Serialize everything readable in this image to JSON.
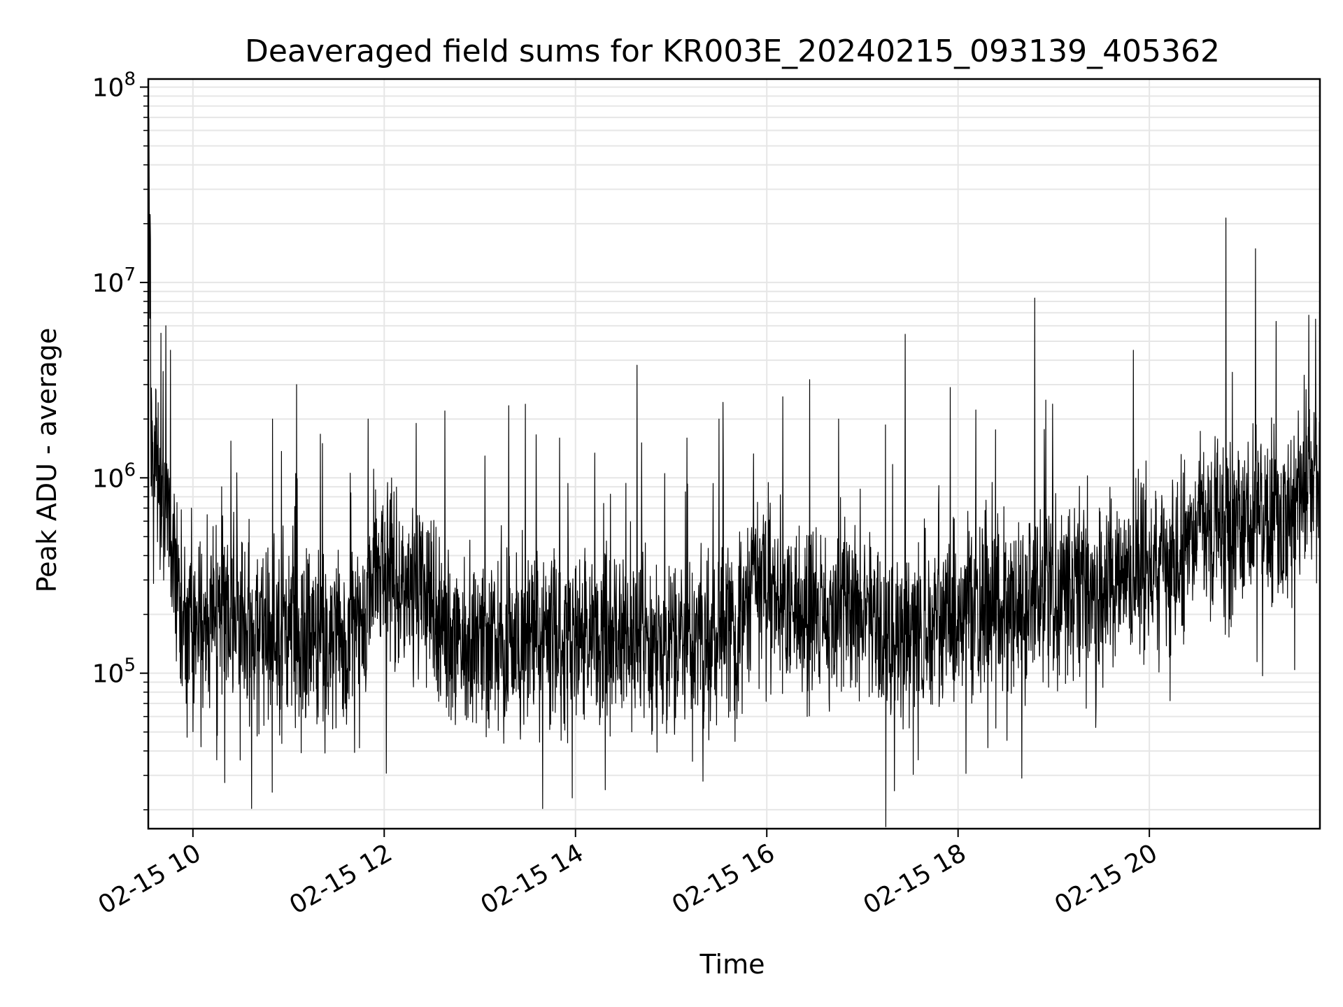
{
  "chart_data": {
    "type": "line",
    "title": "Deaveraged field sums for KR003E_20240215_093139_405362",
    "xlabel": "Time",
    "ylabel": "Peak ADU - average",
    "yscale": "log",
    "xlim": [
      "2024-02-15 09:32",
      "2024-02-15 21:47"
    ],
    "ylim": [
      16000,
      110000000
    ],
    "grid": true,
    "line_color": "#000000",
    "x_ticks": [
      {
        "value": "2024-02-15 10:00",
        "label": "02-15 10"
      },
      {
        "value": "2024-02-15 12:00",
        "label": "02-15 12"
      },
      {
        "value": "2024-02-15 14:00",
        "label": "02-15 14"
      },
      {
        "value": "2024-02-15 16:00",
        "label": "02-15 16"
      },
      {
        "value": "2024-02-15 18:00",
        "label": "02-15 18"
      },
      {
        "value": "2024-02-15 20:00",
        "label": "02-15 20"
      }
    ],
    "y_ticks": [
      {
        "value": 100000,
        "base": "10",
        "exp": "5"
      },
      {
        "value": 1000000,
        "base": "10",
        "exp": "6"
      },
      {
        "value": 10000000,
        "base": "10",
        "exp": "7"
      },
      {
        "value": 100000000,
        "base": "10",
        "exp": "8"
      }
    ],
    "series": [
      {
        "x": [
          "2024-02-15 09:32",
          "2024-02-15 09:34",
          "2024-02-15 09:36",
          "2024-02-15 09:38",
          "2024-02-15 09:40",
          "2024-02-15 09:45",
          "2024-02-15 09:50",
          "2024-02-15 09:55",
          "2024-02-15 10:00",
          "2024-02-15 10:15",
          "2024-02-15 10:30",
          "2024-02-15 10:45",
          "2024-02-15 11:00",
          "2024-02-15 11:15",
          "2024-02-15 11:30",
          "2024-02-15 11:45",
          "2024-02-15 11:55",
          "2024-02-15 12:10",
          "2024-02-15 12:25",
          "2024-02-15 12:40",
          "2024-02-15 12:50",
          "2024-02-15 13:10",
          "2024-02-15 13:30",
          "2024-02-15 13:50",
          "2024-02-15 14:10",
          "2024-02-15 14:30",
          "2024-02-15 14:50",
          "2024-02-15 15:10",
          "2024-02-15 15:30",
          "2024-02-15 15:45",
          "2024-02-15 15:52",
          "2024-02-15 16:05",
          "2024-02-15 16:20",
          "2024-02-15 16:40",
          "2024-02-15 17:00",
          "2024-02-15 17:20",
          "2024-02-15 17:40",
          "2024-02-15 18:00",
          "2024-02-15 18:20",
          "2024-02-15 18:40",
          "2024-02-15 19:00",
          "2024-02-15 19:20",
          "2024-02-15 19:40",
          "2024-02-15 20:00",
          "2024-02-15 20:15",
          "2024-02-15 20:30",
          "2024-02-15 20:50",
          "2024-02-15 21:10",
          "2024-02-15 21:25",
          "2024-02-15 21:35",
          "2024-02-15 21:42",
          "2024-02-15 21:47"
        ],
        "y": [
          70000000,
          1500000,
          900000,
          1100000,
          800000,
          700000,
          300000,
          200000,
          180000,
          190000,
          170000,
          160000,
          150000,
          160000,
          140000,
          150000,
          350000,
          300000,
          250000,
          160000,
          150000,
          150000,
          155000,
          150000,
          150000,
          150000,
          155000,
          150000,
          150000,
          170000,
          400000,
          220000,
          230000,
          200000,
          210000,
          150000,
          180000,
          190000,
          220000,
          230000,
          240000,
          260000,
          300000,
          320000,
          360000,
          550000,
          600000,
          620000,
          580000,
          900000,
          1100000,
          750000
        ]
      }
    ],
    "spikes": [
      {
        "x": "2024-02-15 09:40",
        "y": 5500000
      },
      {
        "x": "2024-02-15 09:43",
        "y": 6000000
      },
      {
        "x": "2024-02-15 09:46",
        "y": 4500000
      },
      {
        "x": "2024-02-15 10:18",
        "y": 900000
      },
      {
        "x": "2024-02-15 10:50",
        "y": 2000000
      },
      {
        "x": "2024-02-15 11:05",
        "y": 3000000
      },
      {
        "x": "2024-02-15 11:50",
        "y": 2000000
      },
      {
        "x": "2024-02-15 12:20",
        "y": 1900000
      },
      {
        "x": "2024-02-15 12:38",
        "y": 2200000
      },
      {
        "x": "2024-02-15 13:50",
        "y": 1600000
      },
      {
        "x": "2024-02-15 15:10",
        "y": 1600000
      },
      {
        "x": "2024-02-15 15:30",
        "y": 2000000
      },
      {
        "x": "2024-02-15 16:10",
        "y": 2600000
      },
      {
        "x": "2024-02-15 16:45",
        "y": 2000000
      },
      {
        "x": "2024-02-15 17:55",
        "y": 2900000
      },
      {
        "x": "2024-02-15 18:55",
        "y": 2500000
      },
      {
        "x": "2024-02-15 19:50",
        "y": 4500000
      },
      {
        "x": "2024-02-15 21:40",
        "y": 6800000
      }
    ],
    "dips": [
      {
        "x": "2024-02-15 10:05",
        "y": 42000
      },
      {
        "x": "2024-02-15 10:15",
        "y": 36000
      },
      {
        "x": "2024-02-15 13:58",
        "y": 23000
      },
      {
        "x": "2024-02-15 15:20",
        "y": 28000
      },
      {
        "x": "2024-02-15 17:20",
        "y": 25000
      },
      {
        "x": "2024-02-15 18:40",
        "y": 29000
      },
      {
        "x": "2024-02-15 17:35",
        "y": 36000
      }
    ]
  }
}
